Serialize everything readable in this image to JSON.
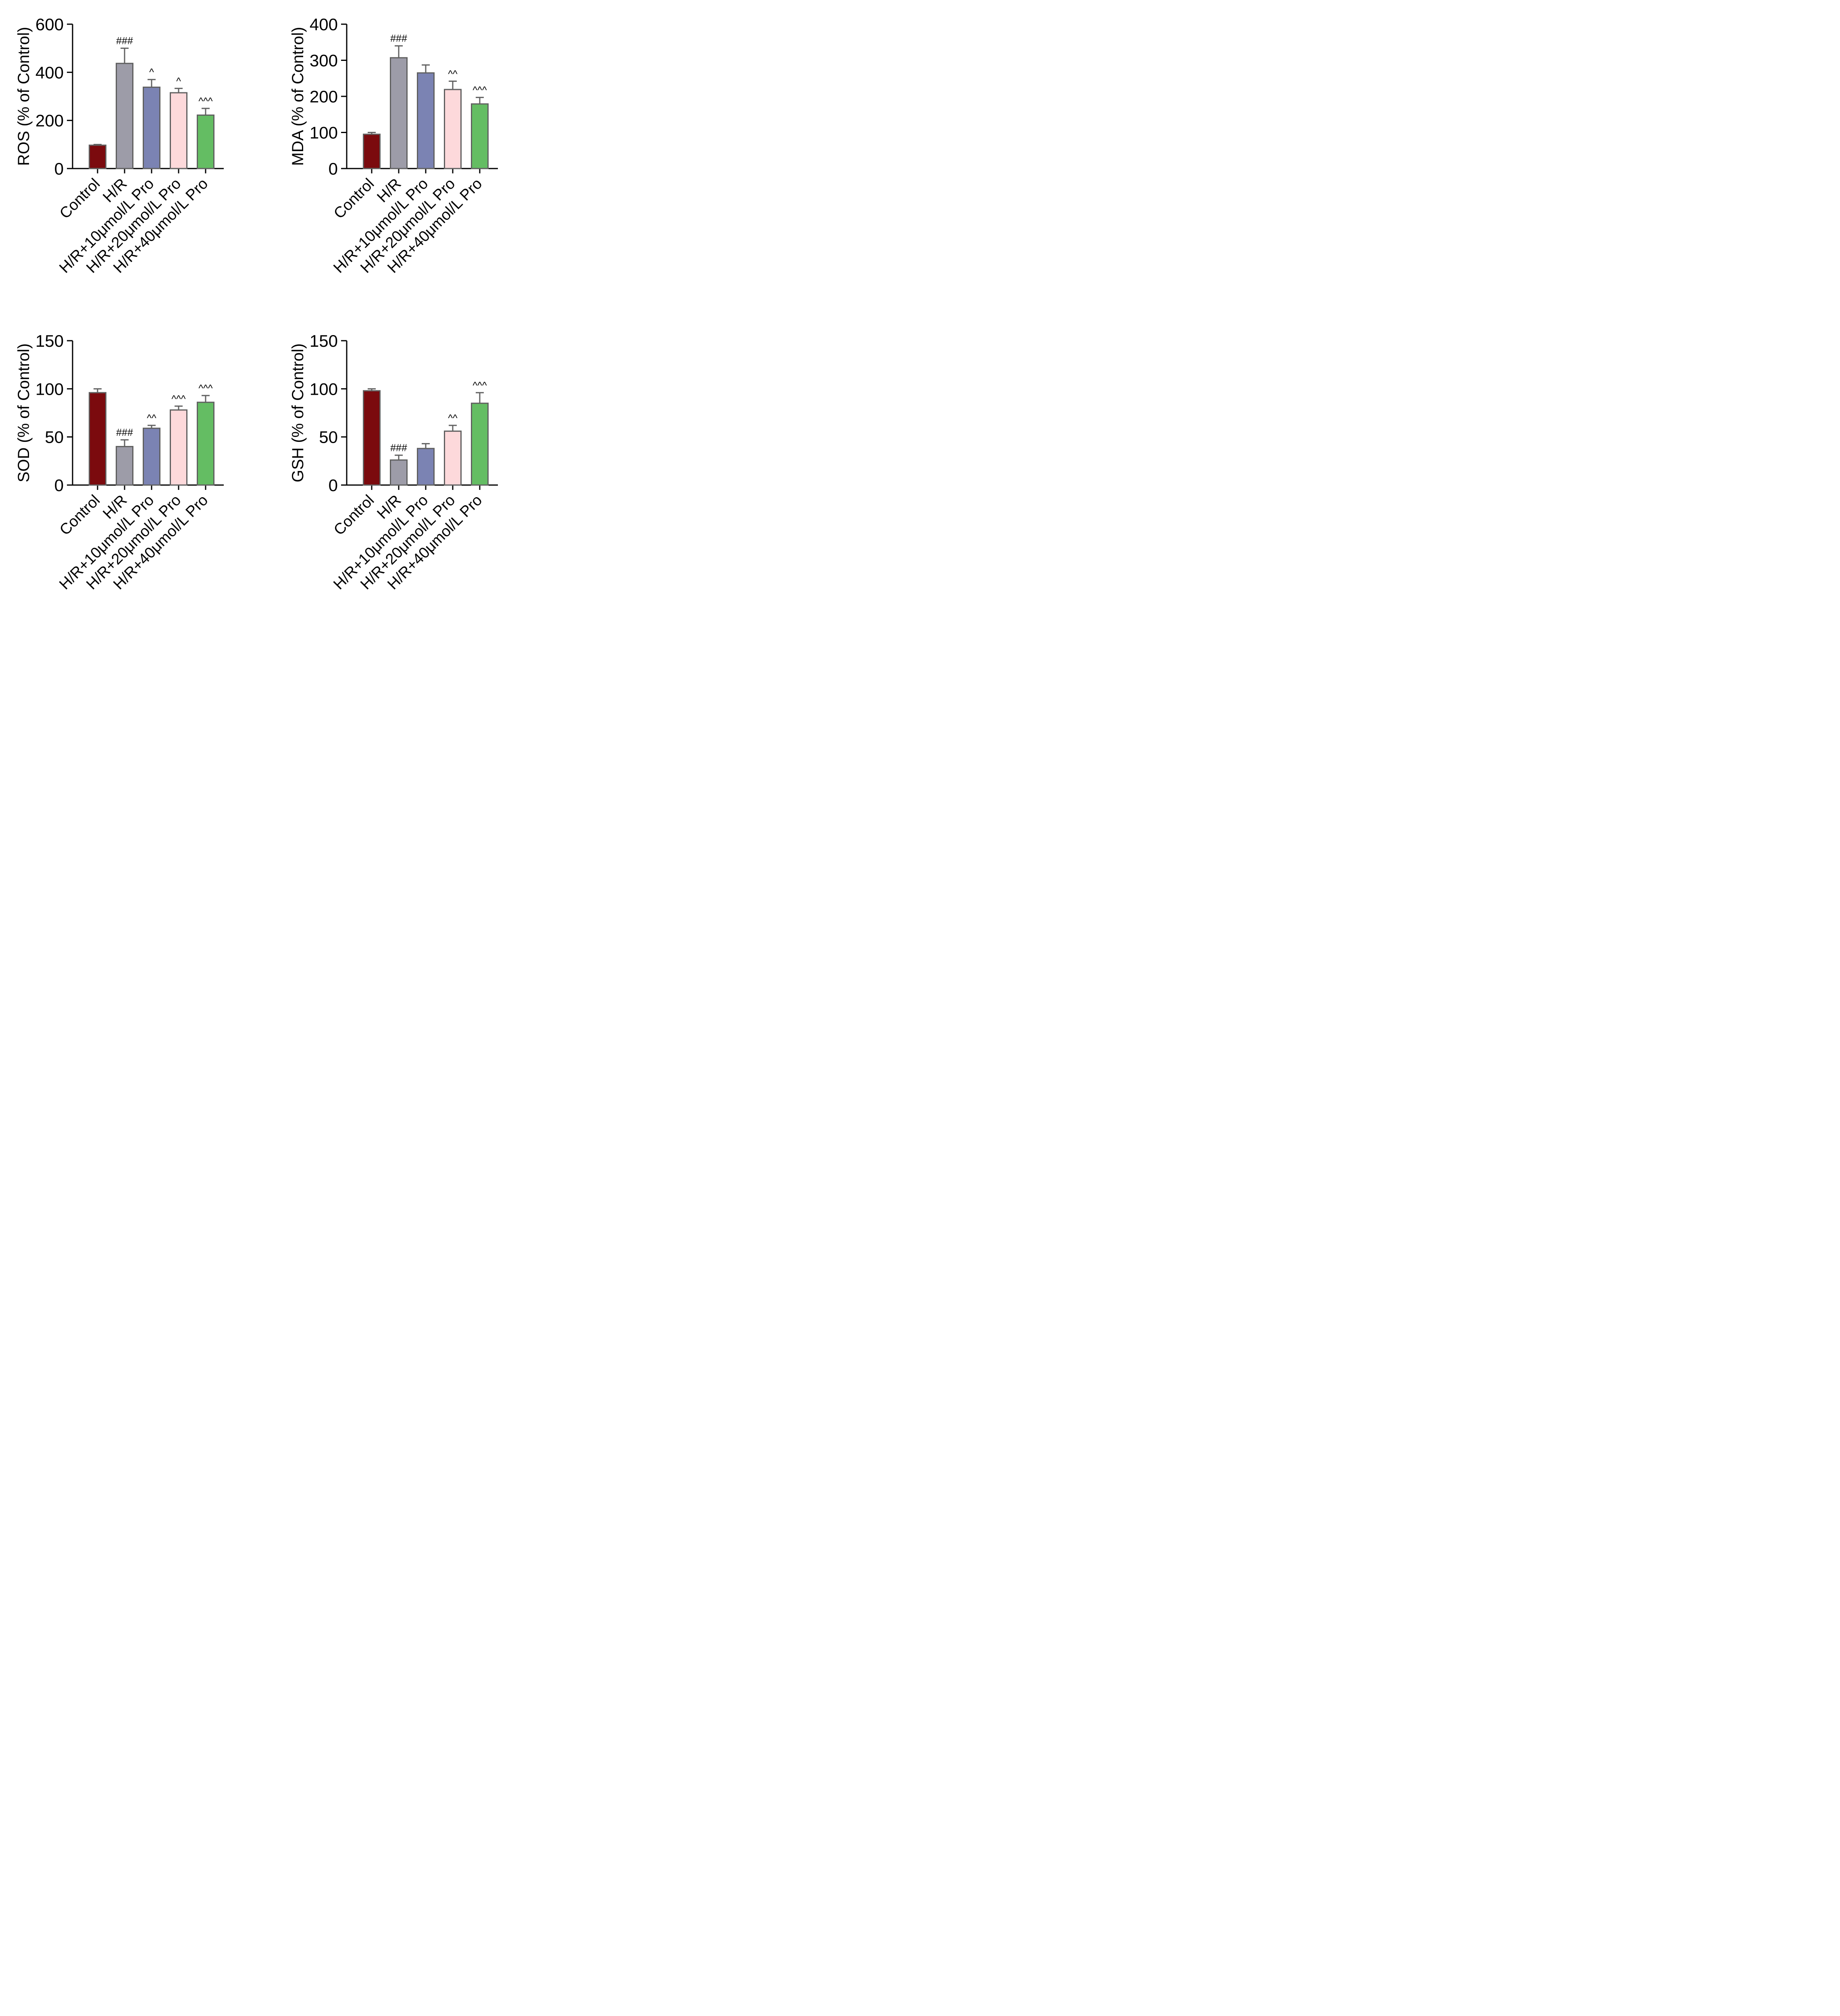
{
  "colors": {
    "axis": "#000000",
    "bar_outline": "#606060",
    "error_bar": "#606060"
  },
  "chart_data": [
    {
      "type": "bar",
      "ylabel": "ROS (% of Control)",
      "ylim": [
        0,
        600
      ],
      "yticks": [
        0,
        200,
        400,
        600
      ],
      "categories": [
        "Control",
        "H/R",
        "H/R+10μmol/L Pro",
        "H/R+20μmol/L Pro",
        "H/R+40μmol/L Pro"
      ],
      "colors": [
        "#7b0a0e",
        "#9d9ca8",
        "#7b83b3",
        "#fdd9db",
        "#64bd63"
      ],
      "values": [
        97,
        437,
        338,
        315,
        222
      ],
      "errors": [
        3,
        63,
        32,
        18,
        28
      ],
      "annotations": [
        "",
        "###",
        "^",
        "^",
        "^^^"
      ]
    },
    {
      "type": "bar",
      "ylabel": "MDA (% of Control)",
      "ylim": [
        0,
        400
      ],
      "yticks": [
        0,
        100,
        200,
        300,
        400
      ],
      "categories": [
        "Control",
        "H/R",
        "H/R+10μmol/L Pro",
        "H/R+20μmol/L Pro",
        "H/R+40μmol/L Pro"
      ],
      "colors": [
        "#7b0a0e",
        "#9d9ca8",
        "#7b83b3",
        "#fdd9db",
        "#64bd63"
      ],
      "values": [
        95,
        307,
        265,
        219,
        179
      ],
      "errors": [
        5,
        33,
        22,
        23,
        18
      ],
      "annotations": [
        "",
        "###",
        "",
        "^^",
        "^^^"
      ]
    },
    {
      "type": "bar",
      "ylabel": "SOD (% of Control)",
      "ylim": [
        0,
        150
      ],
      "yticks": [
        0,
        50,
        100,
        150
      ],
      "categories": [
        "Control",
        "H/R",
        "H/R+10μmol/L Pro",
        "H/R+20μmol/L Pro",
        "H/R+40μmol/L Pro"
      ],
      "colors": [
        "#7b0a0e",
        "#9d9ca8",
        "#7b83b3",
        "#fdd9db",
        "#64bd63"
      ],
      "values": [
        96,
        40,
        59,
        78,
        86
      ],
      "errors": [
        4,
        7,
        3,
        4,
        7
      ],
      "annotations": [
        "",
        "###",
        "^^",
        "^^^",
        "^^^"
      ]
    },
    {
      "type": "bar",
      "ylabel": "GSH (% of Control)",
      "ylim": [
        0,
        150
      ],
      "yticks": [
        0,
        50,
        100,
        150
      ],
      "categories": [
        "Control",
        "H/R",
        "H/R+10μmol/L Pro",
        "H/R+20μmol/L Pro",
        "H/R+40μmol/L Pro"
      ],
      "colors": [
        "#7b0a0e",
        "#9d9ca8",
        "#7b83b3",
        "#fdd9db",
        "#64bd63"
      ],
      "values": [
        98,
        26,
        38,
        56,
        85
      ],
      "errors": [
        2,
        5,
        5,
        6,
        11
      ],
      "annotations": [
        "",
        "###",
        "",
        "^^",
        "^^^"
      ]
    }
  ]
}
